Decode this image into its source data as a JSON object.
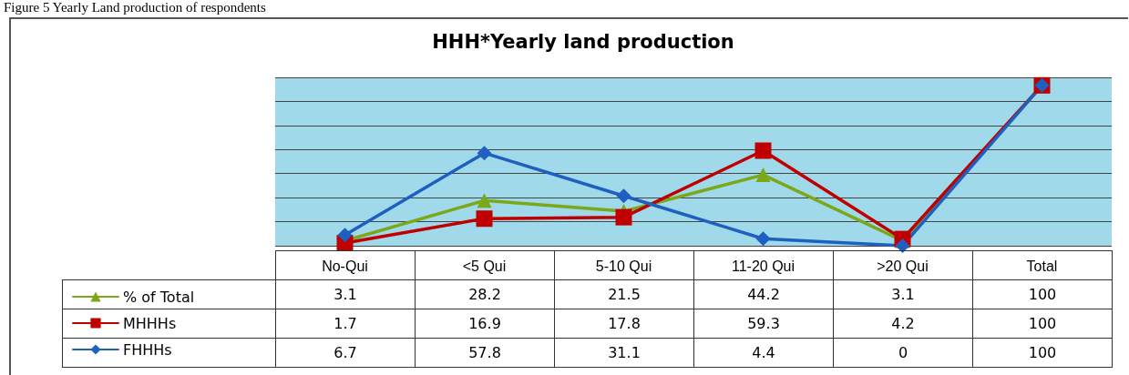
{
  "chart_data": {
    "type": "line",
    "title": "HHH*Yearly land production",
    "annotations": [
      "Figure 5 Yearly Land production of respondents"
    ],
    "categories": [
      "No-Qui",
      "<5 Qui",
      "5-10 Qui",
      "11-20 Qui",
      ">20 Qui",
      "Total"
    ],
    "series": [
      {
        "name": "% of Total",
        "color": "#7aa818",
        "marker": "triangle",
        "values": [
          3.1,
          28.2,
          21.5,
          44.2,
          3.1,
          100
        ]
      },
      {
        "name": "MHHHs",
        "color": "#c00000",
        "marker": "square",
        "values": [
          1.7,
          16.9,
          17.8,
          59.3,
          4.2,
          100
        ]
      },
      {
        "name": "FHHHs",
        "color": "#1f5fbf",
        "marker": "diamond",
        "values": [
          6.7,
          57.8,
          31.1,
          4.4,
          0,
          100
        ]
      }
    ],
    "ylim": [
      0,
      105
    ],
    "yticks": [
      {
        "value": 0,
        "label": null
      },
      {
        "value": 15,
        "label": null
      },
      {
        "value": 30,
        "label": null
      },
      {
        "value": 45,
        "label": null
      },
      {
        "value": 60,
        "label": null
      },
      {
        "value": 75,
        "label": null
      },
      {
        "value": 90,
        "label": null
      },
      {
        "value": 105,
        "label": null
      }
    ],
    "tick_labels": "x",
    "grid": "y",
    "legend": "bottom left",
    "data_labels": true,
    "line_style": "solid"
  }
}
